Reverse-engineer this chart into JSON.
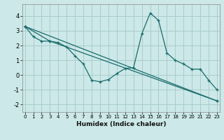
{
  "xlabel": "Humidex (Indice chaleur)",
  "background_color": "#cce8e8",
  "grid_color": "#aacccc",
  "line_color": "#1a6b6b",
  "x_values": [
    0,
    1,
    2,
    3,
    4,
    5,
    6,
    7,
    8,
    9,
    10,
    11,
    12,
    13,
    14,
    15,
    16,
    17,
    18,
    19,
    20,
    21,
    22,
    23
  ],
  "line1": [
    3.3,
    2.6,
    2.3,
    2.3,
    2.2,
    1.9,
    1.3,
    0.75,
    -0.35,
    -0.45,
    -0.3,
    0.1,
    0.45,
    0.5,
    2.8,
    4.2,
    3.7,
    1.5,
    1.0,
    0.75,
    0.4,
    0.4,
    -0.35,
    -1.0
  ],
  "line2_x": [
    0,
    23
  ],
  "line2_y": [
    3.3,
    -1.75
  ],
  "line3_x": [
    0,
    3,
    23
  ],
  "line3_y": [
    3.3,
    2.3,
    -1.75
  ],
  "ylim": [
    -2.5,
    4.8
  ],
  "xlim": [
    -0.3,
    23.3
  ],
  "yticks": [
    -2,
    -1,
    0,
    1,
    2,
    3,
    4
  ],
  "xticks": [
    0,
    1,
    2,
    3,
    4,
    5,
    6,
    7,
    8,
    9,
    10,
    11,
    12,
    13,
    14,
    15,
    16,
    17,
    18,
    19,
    20,
    21,
    22,
    23
  ]
}
